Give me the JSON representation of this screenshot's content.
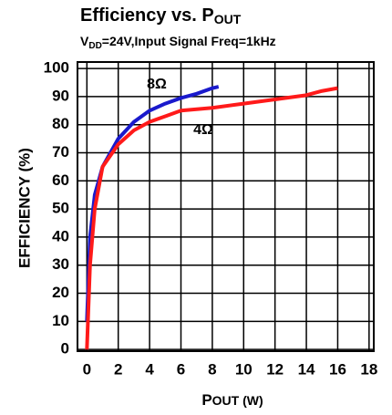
{
  "chart_data": {
    "type": "line",
    "title": "Efficiency vs. P",
    "title_sub": "OUT",
    "subtitle_parts": [
      "V",
      "DD",
      "=24V,Input Signal Freq=1kHz"
    ],
    "x_label_parts": [
      "P",
      "OUT (W)"
    ],
    "y_label": "EFFICIENCY (%)",
    "series": [
      {
        "name": "8Ω",
        "color": "#1a1acc",
        "x": [
          0,
          0.2,
          0.5,
          1,
          2,
          3,
          4,
          5,
          6,
          7,
          8,
          8.4
        ],
        "values": [
          10,
          40,
          55,
          65,
          75,
          81,
          85,
          87.5,
          89.5,
          91,
          93,
          93.5
        ]
      },
      {
        "name": "4Ω",
        "color": "#ff1a1a",
        "x": [
          0,
          0.2,
          0.5,
          1,
          2,
          3,
          4,
          5,
          6,
          8,
          10,
          12,
          14,
          15,
          16
        ],
        "values": [
          0,
          30,
          50,
          65,
          73,
          78,
          81,
          83,
          85,
          86,
          87.5,
          89,
          90.5,
          92,
          93
        ]
      }
    ],
    "xlim": [
      -0.6,
      18.3
    ],
    "ylim": [
      -0.6,
      102.3
    ],
    "xticks": [
      0,
      2,
      4,
      6,
      8,
      10,
      12,
      14,
      16,
      18
    ],
    "yticks": [
      0,
      10,
      20,
      30,
      40,
      50,
      60,
      70,
      80,
      90,
      100
    ],
    "grid": true
  }
}
